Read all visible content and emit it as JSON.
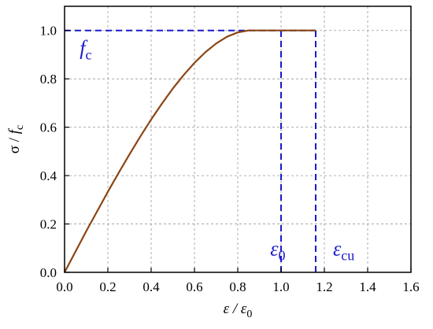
{
  "chart_data": {
    "type": "line",
    "x_axis": {
      "min": 0.0,
      "max": 1.6,
      "ticks": [
        0.0,
        0.2,
        0.4,
        0.6,
        0.8,
        1.0,
        1.2,
        1.4,
        1.6
      ],
      "tick_labels": [
        "0.0",
        "0.2",
        "0.4",
        "0.6",
        "0.8",
        "1.0",
        "1.2",
        "1.4",
        "1.6"
      ]
    },
    "y_axis": {
      "min": 0.0,
      "max": 1.1,
      "ticks": [
        0.0,
        0.2,
        0.4,
        0.6,
        0.8,
        1.0
      ],
      "tick_labels": [
        "0.0",
        "0.2",
        "0.4",
        "0.6",
        "0.8",
        "1.0"
      ]
    },
    "xlabel": {
      "main": "ε / ε",
      "sub": "0"
    },
    "ylabel": {
      "main": "σ / ",
      "italic": "f",
      "sub": "c"
    },
    "grid": true,
    "series": [
      {
        "color": "#8B4513",
        "x": [
          0.0,
          0.05,
          0.1,
          0.15,
          0.2,
          0.25,
          0.3,
          0.35,
          0.4,
          0.45,
          0.5,
          0.55,
          0.6,
          0.65,
          0.7,
          0.75,
          0.8,
          0.85,
          0.9,
          0.95,
          1.0,
          1.16
        ],
        "y": [
          0.0,
          0.085,
          0.17,
          0.252,
          0.333,
          0.412,
          0.488,
          0.562,
          0.632,
          0.698,
          0.76,
          0.816,
          0.866,
          0.91,
          0.946,
          0.974,
          0.992,
          1.0,
          1.0,
          1.0,
          1.0,
          1.0
        ]
      }
    ],
    "reference_lines": [
      {
        "kind": "horizontal",
        "y": 1.0,
        "x_from": 0.0,
        "x_to": 1.16,
        "color": "#1a1acc",
        "style": "dashed"
      },
      {
        "kind": "vertical",
        "x": 1.0,
        "y_from": 0.0,
        "y_to": 1.0,
        "color": "#1a1acc",
        "style": "dashed"
      },
      {
        "kind": "vertical",
        "x": 1.16,
        "y_from": 0.0,
        "y_to": 1.0,
        "color": "#1a1acc",
        "style": "dashed"
      }
    ],
    "annotations": [
      {
        "italic": "f",
        "sub": "c",
        "x": 0.07,
        "y": 0.9
      },
      {
        "italic": "ε",
        "sub": "0",
        "x": 0.95,
        "y": 0.07
      },
      {
        "italic": "ε",
        "sub": "cu",
        "x": 1.24,
        "y": 0.07
      }
    ]
  }
}
